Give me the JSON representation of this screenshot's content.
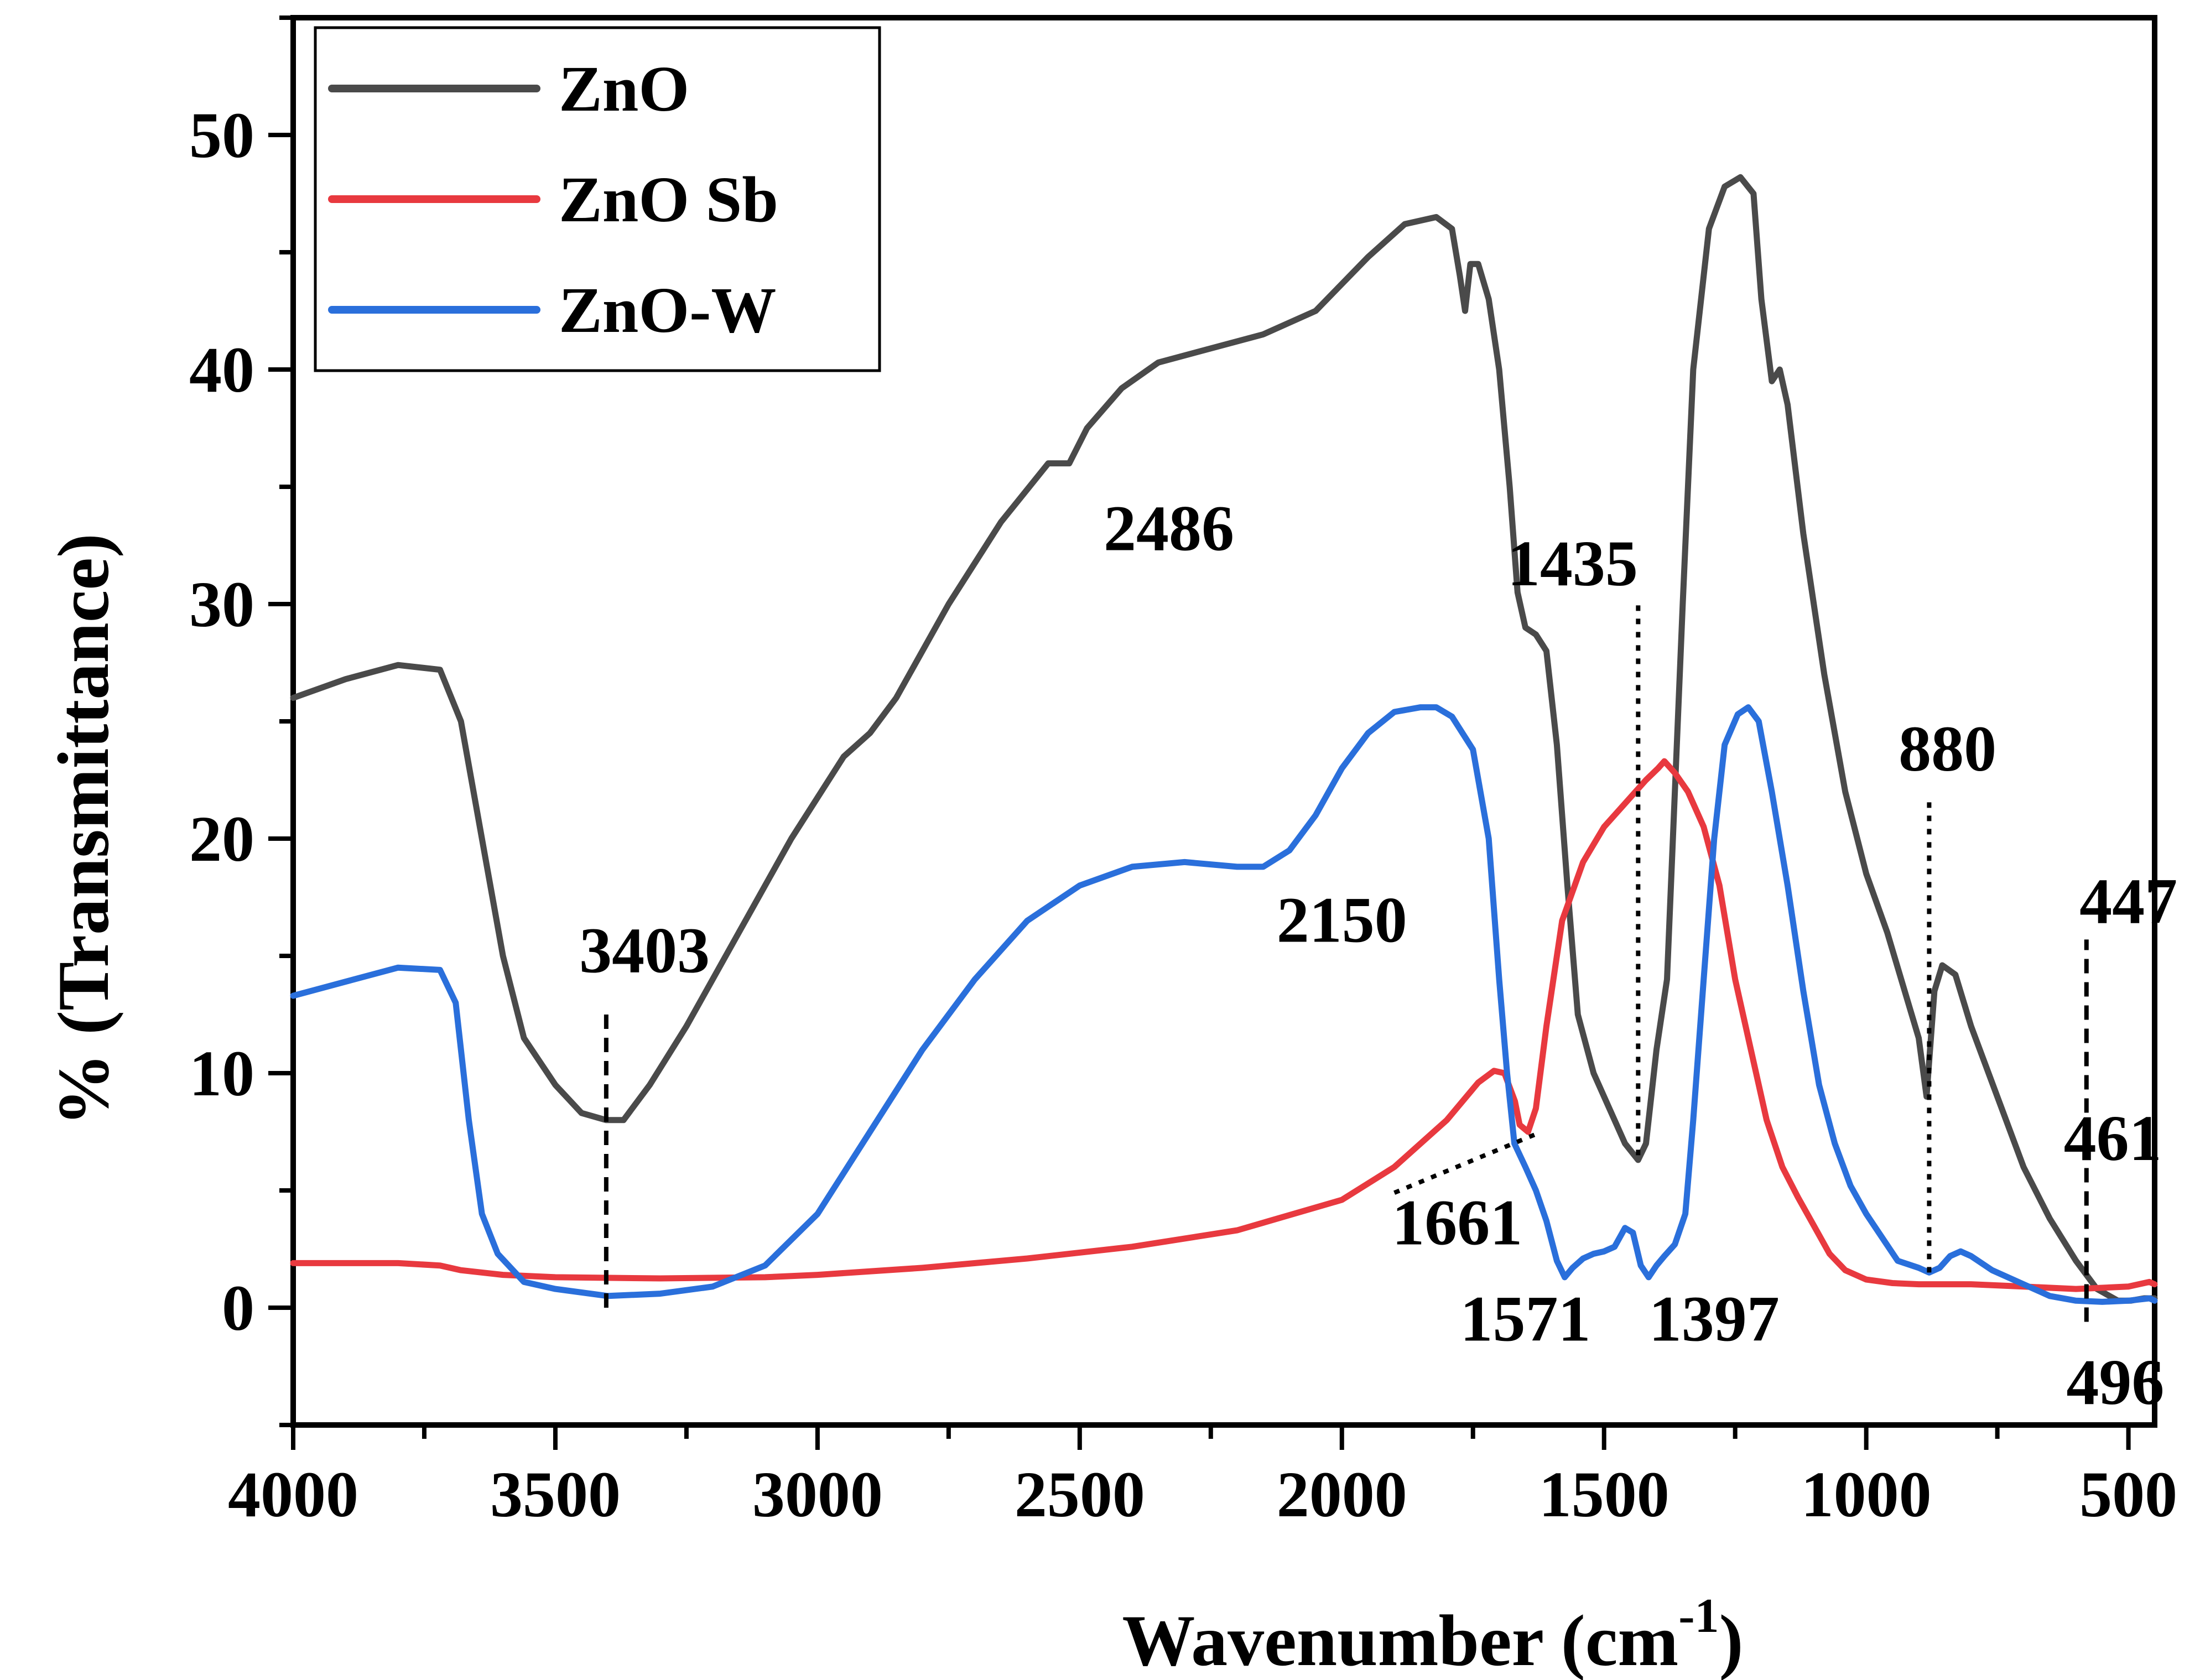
{
  "chart_data": {
    "type": "line",
    "title": "",
    "xlabel": "Wavenumber (cm",
    "xlabel_sup": "-1",
    "xlabel_close": ")",
    "ylabel": "% (Transmittance)",
    "xlim": [
      4000,
      450
    ],
    "ylim": [
      -5,
      55
    ],
    "x_reversed": true,
    "x_ticks": [
      4000,
      3500,
      3000,
      2500,
      2000,
      1500,
      1000,
      500
    ],
    "x_tick_labels": [
      "4000",
      "3500",
      "3000",
      "2500",
      "2000",
      "1500",
      "1000",
      "500"
    ],
    "y_ticks": [
      0,
      10,
      20,
      30,
      40,
      50
    ],
    "y_tick_labels": [
      "0",
      "10",
      "20",
      "30",
      "40",
      "50"
    ],
    "grid": false,
    "legend_position": "top-left",
    "series": [
      {
        "name": "ZnO",
        "color": "#4a4a4a",
        "points": [
          [
            4000,
            26
          ],
          [
            3900,
            26.8
          ],
          [
            3800,
            27.4
          ],
          [
            3720,
            27.2
          ],
          [
            3680,
            25
          ],
          [
            3640,
            20
          ],
          [
            3600,
            15
          ],
          [
            3560,
            11.5
          ],
          [
            3500,
            9.5
          ],
          [
            3450,
            8.3
          ],
          [
            3403,
            8
          ],
          [
            3370,
            8
          ],
          [
            3320,
            9.5
          ],
          [
            3250,
            12
          ],
          [
            3150,
            16
          ],
          [
            3050,
            20
          ],
          [
            2950,
            23.5
          ],
          [
            2900,
            24.5
          ],
          [
            2850,
            26
          ],
          [
            2750,
            30
          ],
          [
            2650,
            33.5
          ],
          [
            2560,
            36
          ],
          [
            2520,
            36
          ],
          [
            2486,
            37.5
          ],
          [
            2420,
            39.2
          ],
          [
            2350,
            40.3
          ],
          [
            2250,
            40.9
          ],
          [
            2150,
            41.5
          ],
          [
            2050,
            42.5
          ],
          [
            1950,
            44.8
          ],
          [
            1880,
            46.2
          ],
          [
            1820,
            46.5
          ],
          [
            1790,
            46
          ],
          [
            1775,
            44
          ],
          [
            1765,
            42.5
          ],
          [
            1755,
            44.5
          ],
          [
            1740,
            44.5
          ],
          [
            1720,
            43
          ],
          [
            1700,
            40
          ],
          [
            1680,
            35
          ],
          [
            1665,
            30.5
          ],
          [
            1650,
            29
          ],
          [
            1630,
            28.7
          ],
          [
            1610,
            28
          ],
          [
            1590,
            24
          ],
          [
            1570,
            18
          ],
          [
            1550,
            12.5
          ],
          [
            1520,
            10
          ],
          [
            1490,
            8.5
          ],
          [
            1460,
            7
          ],
          [
            1435,
            6.3
          ],
          [
            1420,
            7
          ],
          [
            1400,
            11
          ],
          [
            1380,
            14
          ],
          [
            1365,
            22
          ],
          [
            1350,
            30
          ],
          [
            1330,
            40
          ],
          [
            1300,
            46
          ],
          [
            1270,
            47.8
          ],
          [
            1240,
            48.2
          ],
          [
            1215,
            47.5
          ],
          [
            1200,
            43
          ],
          [
            1180,
            39.5
          ],
          [
            1165,
            40
          ],
          [
            1150,
            38.5
          ],
          [
            1120,
            33
          ],
          [
            1080,
            27
          ],
          [
            1040,
            22
          ],
          [
            1000,
            18.5
          ],
          [
            960,
            16
          ],
          [
            920,
            13
          ],
          [
            900,
            11.5
          ],
          [
            885,
            9
          ],
          [
            880,
            10.5
          ],
          [
            870,
            13.5
          ],
          [
            855,
            14.6
          ],
          [
            830,
            14.2
          ],
          [
            800,
            12
          ],
          [
            750,
            9
          ],
          [
            700,
            6
          ],
          [
            650,
            3.8
          ],
          [
            600,
            2
          ],
          [
            560,
            0.8
          ],
          [
            520,
            0.3
          ],
          [
            496,
            0.3
          ],
          [
            470,
            0.4
          ],
          [
            450,
            0.4
          ]
        ]
      },
      {
        "name": "ZnO Sb",
        "color": "#e8393f",
        "points": [
          [
            4000,
            1.9
          ],
          [
            3800,
            1.9
          ],
          [
            3720,
            1.8
          ],
          [
            3680,
            1.6
          ],
          [
            3600,
            1.4
          ],
          [
            3500,
            1.3
          ],
          [
            3300,
            1.25
          ],
          [
            3100,
            1.3
          ],
          [
            3000,
            1.4
          ],
          [
            2800,
            1.7
          ],
          [
            2600,
            2.1
          ],
          [
            2400,
            2.6
          ],
          [
            2200,
            3.3
          ],
          [
            2000,
            4.6
          ],
          [
            1900,
            6
          ],
          [
            1800,
            8
          ],
          [
            1740,
            9.6
          ],
          [
            1710,
            10.1
          ],
          [
            1690,
            10
          ],
          [
            1670,
            8.8
          ],
          [
            1661,
            7.8
          ],
          [
            1645,
            7.5
          ],
          [
            1630,
            8.5
          ],
          [
            1610,
            12
          ],
          [
            1580,
            16.5
          ],
          [
            1540,
            19
          ],
          [
            1500,
            20.5
          ],
          [
            1460,
            21.5
          ],
          [
            1420,
            22.5
          ],
          [
            1397,
            23
          ],
          [
            1385,
            23.3
          ],
          [
            1365,
            22.8
          ],
          [
            1340,
            22
          ],
          [
            1310,
            20.5
          ],
          [
            1280,
            18
          ],
          [
            1250,
            14
          ],
          [
            1220,
            11
          ],
          [
            1190,
            8
          ],
          [
            1160,
            6
          ],
          [
            1130,
            4.7
          ],
          [
            1100,
            3.5
          ],
          [
            1070,
            2.3
          ],
          [
            1040,
            1.6
          ],
          [
            1000,
            1.2
          ],
          [
            950,
            1.05
          ],
          [
            900,
            1
          ],
          [
            800,
            1
          ],
          [
            700,
            0.9
          ],
          [
            600,
            0.8
          ],
          [
            500,
            0.9
          ],
          [
            460,
            1.1
          ],
          [
            450,
            1
          ]
        ]
      },
      {
        "name": "ZnO-W",
        "color": "#2a6fdb",
        "points": [
          [
            4000,
            13.3
          ],
          [
            3900,
            13.9
          ],
          [
            3800,
            14.5
          ],
          [
            3720,
            14.4
          ],
          [
            3690,
            13
          ],
          [
            3665,
            8
          ],
          [
            3640,
            4
          ],
          [
            3610,
            2.3
          ],
          [
            3560,
            1.1
          ],
          [
            3500,
            0.8
          ],
          [
            3400,
            0.5
          ],
          [
            3300,
            0.6
          ],
          [
            3200,
            0.9
          ],
          [
            3100,
            1.8
          ],
          [
            3000,
            4
          ],
          [
            2900,
            7.5
          ],
          [
            2800,
            11
          ],
          [
            2700,
            14
          ],
          [
            2600,
            16.5
          ],
          [
            2500,
            18
          ],
          [
            2400,
            18.8
          ],
          [
            2300,
            19
          ],
          [
            2200,
            18.8
          ],
          [
            2150,
            18.8
          ],
          [
            2100,
            19.5
          ],
          [
            2050,
            21
          ],
          [
            2000,
            23
          ],
          [
            1950,
            24.5
          ],
          [
            1900,
            25.4
          ],
          [
            1850,
            25.6
          ],
          [
            1820,
            25.6
          ],
          [
            1790,
            25.2
          ],
          [
            1750,
            23.8
          ],
          [
            1720,
            20
          ],
          [
            1700,
            14
          ],
          [
            1685,
            10
          ],
          [
            1671,
            7
          ],
          [
            1650,
            6
          ],
          [
            1630,
            5
          ],
          [
            1610,
            3.7
          ],
          [
            1590,
            2
          ],
          [
            1575,
            1.3
          ],
          [
            1560,
            1.7
          ],
          [
            1540,
            2.1
          ],
          [
            1520,
            2.3
          ],
          [
            1500,
            2.4
          ],
          [
            1480,
            2.6
          ],
          [
            1460,
            3.4
          ],
          [
            1445,
            3.2
          ],
          [
            1430,
            1.8
          ],
          [
            1415,
            1.3
          ],
          [
            1400,
            1.8
          ],
          [
            1385,
            2.2
          ],
          [
            1365,
            2.7
          ],
          [
            1345,
            4
          ],
          [
            1330,
            8
          ],
          [
            1310,
            14
          ],
          [
            1290,
            20
          ],
          [
            1270,
            24
          ],
          [
            1245,
            25.3
          ],
          [
            1225,
            25.6
          ],
          [
            1205,
            25
          ],
          [
            1180,
            22
          ],
          [
            1150,
            18
          ],
          [
            1120,
            13.5
          ],
          [
            1090,
            9.5
          ],
          [
            1060,
            7
          ],
          [
            1030,
            5.2
          ],
          [
            1000,
            4
          ],
          [
            970,
            3
          ],
          [
            940,
            2
          ],
          [
            900,
            1.7
          ],
          [
            880,
            1.5
          ],
          [
            860,
            1.7
          ],
          [
            840,
            2.2
          ],
          [
            820,
            2.4
          ],
          [
            800,
            2.2
          ],
          [
            760,
            1.6
          ],
          [
            700,
            1
          ],
          [
            650,
            0.5
          ],
          [
            600,
            0.3
          ],
          [
            550,
            0.25
          ],
          [
            500,
            0.3
          ],
          [
            460,
            0.4
          ],
          [
            450,
            0.3
          ]
        ]
      }
    ],
    "annotations": [
      {
        "label": "3403",
        "line_x": 3403,
        "line_y": [
          0,
          12.8
        ],
        "text_x": 3330,
        "text_y": 14.3,
        "style": "dashed"
      },
      {
        "label": "2486",
        "text_x": 2330,
        "text_y": 32.3
      },
      {
        "label": "2150",
        "text_x": 2000,
        "text_y": 15.6
      },
      {
        "label": "1435",
        "line_x": 1435,
        "line_y": [
          6.5,
          30
        ],
        "text_x": 1560,
        "text_y": 30.8,
        "style": "dotted"
      },
      {
        "label": "1661",
        "line_x": [
          1900,
          1630
        ],
        "line_y": [
          4.9,
          7.4
        ],
        "text_x": 1780,
        "text_y": 2.7,
        "style": "dotted"
      },
      {
        "label": "1571",
        "text_x": 1650,
        "text_y": -1.4
      },
      {
        "label": "1397",
        "text_x": 1290,
        "text_y": -1.4
      },
      {
        "label": "880",
        "line_x": 880,
        "line_y": [
          1.5,
          21.8
        ],
        "text_x": 845,
        "text_y": 22.9,
        "style": "dotted"
      },
      {
        "label": "447",
        "line_x": 580,
        "line_y": [
          -0.6,
          15.7
        ],
        "text_x": 500,
        "text_y": 16.4,
        "style": "dashed"
      },
      {
        "label": "461",
        "text_x": 530,
        "text_y": 6.3
      },
      {
        "label": "496",
        "text_x": 525,
        "text_y": -4.1
      }
    ]
  }
}
